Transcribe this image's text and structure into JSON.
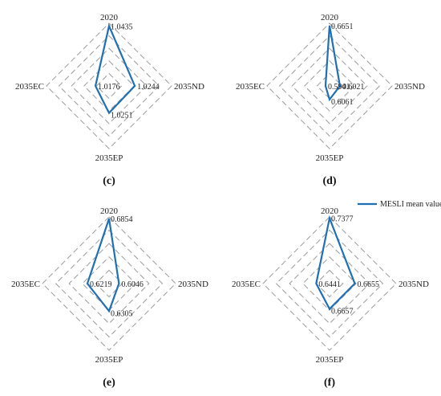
{
  "style": {
    "series_color": "#1f6fb5",
    "grid_color": "#9a9a9a"
  },
  "legend": {
    "label": "MESLI mean value",
    "placement": "top-right of panel (f)"
  },
  "chart_data": [
    {
      "panel": "(c)",
      "type": "radar",
      "axes": [
        "2020",
        "2035ND",
        "2035EP",
        "2035EC"
      ],
      "grid": true,
      "series": [
        {
          "name": "MESLI mean value",
          "values": [
            1.0435,
            1.0244,
            1.0251,
            1.0176
          ],
          "labels": [
            "1.0435",
            "1.0244",
            "1.0251",
            "1.0176"
          ]
        }
      ]
    },
    {
      "panel": "(d)",
      "type": "radar",
      "axes": [
        "2020",
        "2035ND",
        "2035EP",
        "2035EC"
      ],
      "grid": true,
      "series": [
        {
          "name": "MESLI mean value",
          "values": [
            0.6651,
            0.6021,
            0.6061,
            0.5941
          ],
          "labels": [
            "0.6651",
            "0.6021",
            "0.6061",
            "0.5941"
          ]
        }
      ]
    },
    {
      "panel": "(e)",
      "type": "radar",
      "axes": [
        "2020",
        "2035ND",
        "2035EP",
        "2035EC"
      ],
      "grid": true,
      "series": [
        {
          "name": "MESLI mean value",
          "values": [
            0.6854,
            0.6046,
            0.6305,
            0.6219
          ],
          "labels": [
            "0.6854",
            "0.6046",
            "0.6305",
            "0.6219"
          ]
        }
      ]
    },
    {
      "panel": "(f)",
      "type": "radar",
      "axes": [
        "2020",
        "2035ND",
        "2035EP",
        "2035EC"
      ],
      "grid": true,
      "series": [
        {
          "name": "MESLI mean value",
          "values": [
            0.7377,
            0.6655,
            0.6657,
            0.6441
          ],
          "labels": [
            "0.7377",
            "0.6655",
            "0.6657",
            "0.6441"
          ]
        }
      ]
    }
  ]
}
